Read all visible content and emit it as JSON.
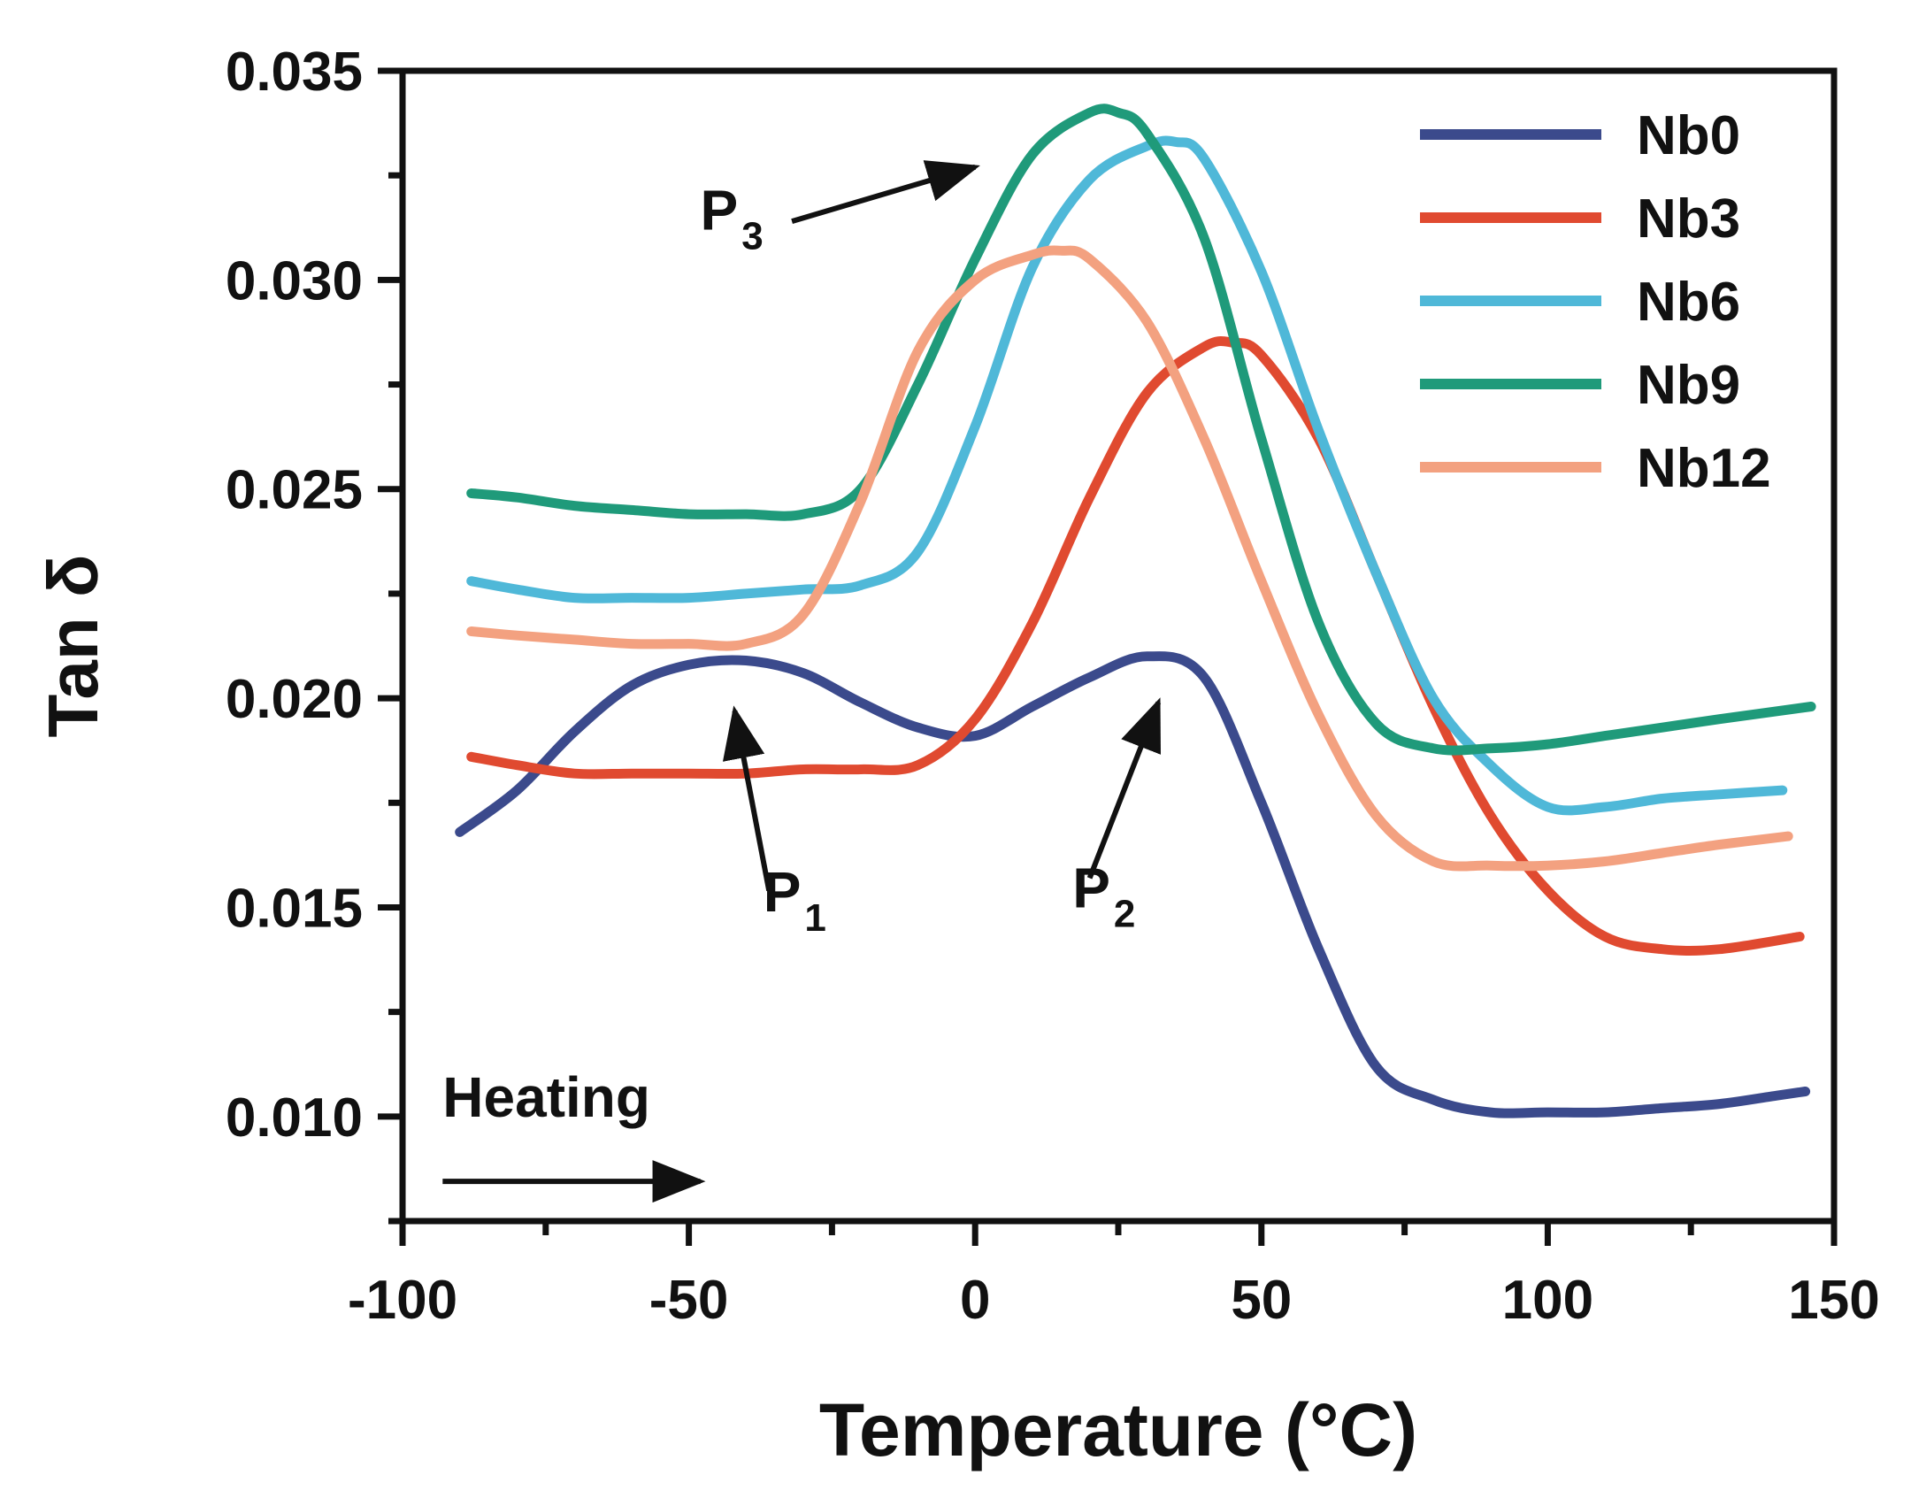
{
  "chart_data": {
    "type": "line",
    "title": "",
    "xlabel": "Temperature (°C)",
    "ylabel": "Tan δ",
    "xlim": [
      -100,
      150
    ],
    "ylim": [
      0.0075,
      0.035
    ],
    "x_ticks": [
      -100,
      -50,
      0,
      50,
      100,
      150
    ],
    "x_tick_labels": [
      "-100",
      "-50",
      "0",
      "50",
      "100",
      "150"
    ],
    "y_ticks": [
      0.01,
      0.015,
      0.02,
      0.025,
      0.03,
      0.035
    ],
    "y_tick_labels": [
      "0.010",
      "0.015",
      "0.020",
      "0.025",
      "0.030",
      "0.035"
    ],
    "grid": false,
    "legend_position": "top-right",
    "series": [
      {
        "name": "Nb0",
        "color": "#3b4a8c",
        "points": [
          [
            -90,
            0.0168
          ],
          [
            -80,
            0.0178
          ],
          [
            -70,
            0.0192
          ],
          [
            -60,
            0.0203
          ],
          [
            -50,
            0.0208
          ],
          [
            -40,
            0.0209
          ],
          [
            -30,
            0.0206
          ],
          [
            -20,
            0.0199
          ],
          [
            -10,
            0.0193
          ],
          [
            0,
            0.0191
          ],
          [
            10,
            0.0198
          ],
          [
            20,
            0.0205
          ],
          [
            30,
            0.021
          ],
          [
            40,
            0.0205
          ],
          [
            50,
            0.0175
          ],
          [
            60,
            0.014
          ],
          [
            70,
            0.0112
          ],
          [
            80,
            0.0104
          ],
          [
            90,
            0.0101
          ],
          [
            100,
            0.0101
          ],
          [
            110,
            0.0101
          ],
          [
            120,
            0.0102
          ],
          [
            130,
            0.0103
          ],
          [
            140,
            0.0105
          ],
          [
            145,
            0.0106
          ]
        ]
      },
      {
        "name": "Nb3",
        "color": "#e04a30",
        "points": [
          [
            -88,
            0.0186
          ],
          [
            -80,
            0.0184
          ],
          [
            -70,
            0.0182
          ],
          [
            -60,
            0.0182
          ],
          [
            -50,
            0.0182
          ],
          [
            -40,
            0.0182
          ],
          [
            -30,
            0.0183
          ],
          [
            -20,
            0.0183
          ],
          [
            -10,
            0.0184
          ],
          [
            0,
            0.0195
          ],
          [
            10,
            0.0218
          ],
          [
            20,
            0.0248
          ],
          [
            30,
            0.0273
          ],
          [
            40,
            0.0284
          ],
          [
            45,
            0.0285
          ],
          [
            50,
            0.0282
          ],
          [
            60,
            0.0262
          ],
          [
            70,
            0.023
          ],
          [
            80,
            0.0198
          ],
          [
            90,
            0.0172
          ],
          [
            100,
            0.0154
          ],
          [
            110,
            0.0143
          ],
          [
            120,
            0.014
          ],
          [
            130,
            0.014
          ],
          [
            144,
            0.0143
          ]
        ]
      },
      {
        "name": "Nb6",
        "color": "#4fb8d8",
        "points": [
          [
            -88,
            0.0228
          ],
          [
            -80,
            0.0226
          ],
          [
            -70,
            0.0224
          ],
          [
            -60,
            0.0224
          ],
          [
            -50,
            0.0224
          ],
          [
            -40,
            0.0225
          ],
          [
            -30,
            0.0226
          ],
          [
            -20,
            0.0227
          ],
          [
            -10,
            0.0235
          ],
          [
            0,
            0.0265
          ],
          [
            10,
            0.0303
          ],
          [
            20,
            0.0324
          ],
          [
            30,
            0.0332
          ],
          [
            35,
            0.0333
          ],
          [
            40,
            0.0329
          ],
          [
            50,
            0.0302
          ],
          [
            60,
            0.0264
          ],
          [
            70,
            0.023
          ],
          [
            80,
            0.02
          ],
          [
            90,
            0.0184
          ],
          [
            100,
            0.0174
          ],
          [
            110,
            0.0174
          ],
          [
            120,
            0.0176
          ],
          [
            130,
            0.0177
          ],
          [
            141,
            0.0178
          ]
        ]
      },
      {
        "name": "Nb9",
        "color": "#1f9a7a",
        "points": [
          [
            -88,
            0.0249
          ],
          [
            -80,
            0.0248
          ],
          [
            -70,
            0.0246
          ],
          [
            -60,
            0.0245
          ],
          [
            -50,
            0.0244
          ],
          [
            -40,
            0.0244
          ],
          [
            -30,
            0.0244
          ],
          [
            -20,
            0.025
          ],
          [
            -10,
            0.0275
          ],
          [
            0,
            0.0305
          ],
          [
            10,
            0.033
          ],
          [
            20,
            0.034
          ],
          [
            25,
            0.034
          ],
          [
            30,
            0.0335
          ],
          [
            40,
            0.031
          ],
          [
            50,
            0.0262
          ],
          [
            60,
            0.0218
          ],
          [
            70,
            0.0194
          ],
          [
            80,
            0.0188
          ],
          [
            90,
            0.0188
          ],
          [
            100,
            0.0189
          ],
          [
            110,
            0.0191
          ],
          [
            120,
            0.0193
          ],
          [
            130,
            0.0195
          ],
          [
            146,
            0.0198
          ]
        ]
      },
      {
        "name": "Nb12",
        "color": "#f3a180",
        "points": [
          [
            -88,
            0.0216
          ],
          [
            -80,
            0.0215
          ],
          [
            -70,
            0.0214
          ],
          [
            -60,
            0.0213
          ],
          [
            -50,
            0.0213
          ],
          [
            -40,
            0.0213
          ],
          [
            -30,
            0.022
          ],
          [
            -20,
            0.0247
          ],
          [
            -10,
            0.0283
          ],
          [
            0,
            0.03
          ],
          [
            10,
            0.0306
          ],
          [
            15,
            0.0307
          ],
          [
            20,
            0.0305
          ],
          [
            30,
            0.029
          ],
          [
            40,
            0.0262
          ],
          [
            50,
            0.0228
          ],
          [
            60,
            0.0196
          ],
          [
            70,
            0.0172
          ],
          [
            80,
            0.0161
          ],
          [
            90,
            0.016
          ],
          [
            100,
            0.016
          ],
          [
            110,
            0.0161
          ],
          [
            120,
            0.0163
          ],
          [
            130,
            0.0165
          ],
          [
            142,
            0.0167
          ]
        ]
      }
    ],
    "annotations": [
      {
        "label": "P",
        "subscript": "1",
        "x": -37,
        "y": 0.0149,
        "arrow_from": [
          -36,
          0.0154
        ],
        "arrow_to": [
          -42,
          0.0197
        ]
      },
      {
        "label": "P",
        "subscript": "2",
        "x": 17,
        "y": 0.015,
        "arrow_from": [
          20,
          0.0157
        ],
        "arrow_to": [
          32,
          0.0199
        ]
      },
      {
        "label": "P",
        "subscript": "3",
        "x": -48,
        "y": 0.0312,
        "arrow_from": [
          -32,
          0.0314
        ],
        "arrow_to": [
          0,
          0.0327
        ]
      },
      {
        "label": "Heating",
        "x": -93,
        "y": 0.01,
        "arrow_from": [
          -93,
          0.00845
        ],
        "arrow_to": [
          -48,
          0.00845
        ]
      }
    ]
  }
}
